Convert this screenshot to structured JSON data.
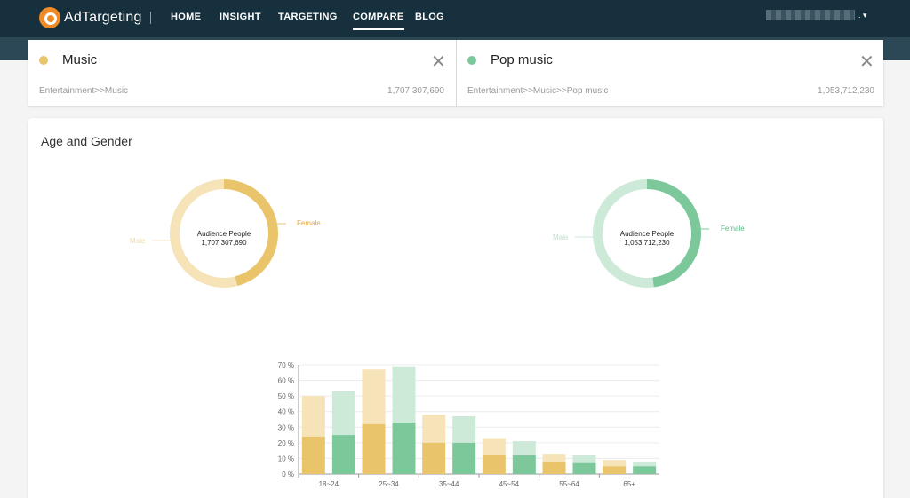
{
  "nav": {
    "logo_text": "AdTargeting",
    "items": [
      {
        "label": "HOME"
      },
      {
        "label": "INSIGHT"
      },
      {
        "label": "TARGETING"
      },
      {
        "label": "COMPARE",
        "active": true
      },
      {
        "label": "BLOG"
      }
    ],
    "user_suffix": ".",
    "caret": "▾"
  },
  "compare": [
    {
      "title": "Music",
      "path": "Entertainment>>Music",
      "count": "1,707,307,690",
      "color": "#e9c46a",
      "close": "✕"
    },
    {
      "title": "Pop music",
      "path": "Entertainment>>Music>>Pop music",
      "count": "1,053,712,230",
      "color": "#7cc89a",
      "close": "✕"
    }
  ],
  "panel": {
    "title": "Age and Gender",
    "donuts": [
      {
        "center_label": "Audience People",
        "center_value": "1,707,307,690",
        "female_label": "Female",
        "male_label": "Male",
        "female_share": 0.46,
        "female_color": "#e9c46a",
        "male_color": "#f6e3b8"
      },
      {
        "center_label": "Audience People",
        "center_value": "1,053,712,230",
        "female_label": "Female",
        "male_label": "Male",
        "female_share": 0.48,
        "female_color": "#7cc89a",
        "male_color": "#cde9d8"
      }
    ]
  },
  "chart_data": {
    "type": "bar",
    "categories": [
      "18~24",
      "25~34",
      "35~44",
      "45~54",
      "55~64",
      "65+"
    ],
    "series": [
      {
        "name": "Music",
        "total": [
          50,
          67,
          38,
          23,
          13,
          9
        ],
        "female": [
          24,
          32,
          20,
          12.5,
          8,
          5
        ]
      },
      {
        "name": "Pop music",
        "total": [
          53,
          69,
          37,
          21,
          12,
          8
        ],
        "female": [
          25,
          33,
          20,
          12,
          7,
          5
        ]
      }
    ],
    "colors": {
      "music_female": "#e9c46a",
      "music_male": "#f6e3b8",
      "pop_female": "#7cc89a",
      "pop_male": "#cde9d8"
    },
    "yticks": [
      "0 %",
      "10 %",
      "20 %",
      "30 %",
      "40 %",
      "50 %",
      "60 %",
      "70 %"
    ],
    "ylim": [
      0,
      70
    ],
    "grid": true
  }
}
